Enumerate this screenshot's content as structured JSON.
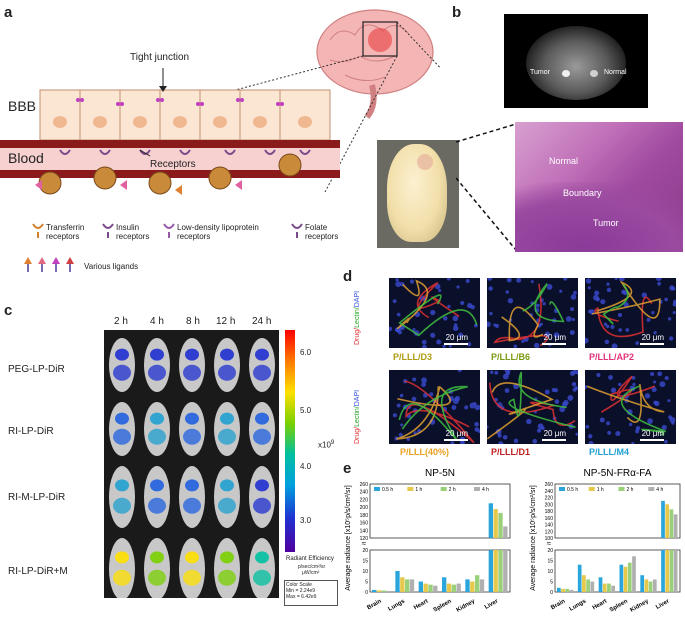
{
  "panel_a": {
    "letter": "a",
    "tight_junction": "Tight junction",
    "bbb": "BBB",
    "blood": "Blood",
    "receptors": "Receptors",
    "legend": [
      "Transferrin receptors",
      "Insulin receptors",
      "Low-density lipoprotein receptors",
      "Folate receptors"
    ],
    "ligands": "Various ligands"
  },
  "panel_b": {
    "letter": "b",
    "tumor": "Tumor",
    "normal": "Normal",
    "hist_normal": "Normal",
    "hist_boundary": "Boundary",
    "hist_tumor": "Tumor"
  },
  "panel_c": {
    "letter": "c",
    "times": [
      "2 h",
      "4 h",
      "8 h",
      "12 h",
      "24 h"
    ],
    "rows": [
      "PEG-LP-DiR",
      "RI-LP-DiR",
      "RI-M-LP-DiR",
      "RI-LP-DiR+M"
    ],
    "scale_ticks": [
      "6.0",
      "5.0",
      "4.0",
      "3.0"
    ],
    "scale_unit": "x10",
    "scale_exp": "9",
    "radiant": "Radiant Efficiency",
    "radiant_unit_top": "p/sec/cm²/sr",
    "radiant_unit_bot": "μW/cm²",
    "color_scale": "Color Scale",
    "min": "Min = 2.24e9",
    "max": "Max = 6.42e9"
  },
  "panel_d": {
    "letter": "d",
    "stain_side_drug": "Drug/",
    "stain_side_lectin": "Lectin/",
    "stain_side_dapi": "DAPI",
    "scale": "20 μm",
    "labels_top": [
      "P/LLL/D3",
      "P/LLL/B6",
      "P/LLL/AP2"
    ],
    "labels_bottom": [
      "P/LLL(40%)",
      "P/LLL/D1",
      "P/LLL/M4"
    ],
    "label_colors_top": [
      "#b09a10",
      "#7a9a10",
      "#e0307a"
    ],
    "label_colors_bottom": [
      "#e8a020",
      "#c02020",
      "#20a0d0"
    ]
  },
  "panel_e": {
    "letter": "e"
  },
  "chart_data": [
    {
      "type": "bar",
      "title": "NP-5N",
      "ylabel": "Average radiance [x10⁵p/s/cm²/sr]",
      "categories": [
        "Brain",
        "Lungs",
        "Heart",
        "Spleen",
        "Kidney",
        "Liver"
      ],
      "series": [
        {
          "name": "0.5 h",
          "color": "#2aa6dc",
          "values": [
            1.0,
            10,
            5,
            7,
            6,
            210
          ]
        },
        {
          "name": "1 h",
          "color": "#e6c84a",
          "values": [
            0.8,
            7,
            4,
            4,
            5,
            195
          ]
        },
        {
          "name": "2 h",
          "color": "#9ad07a",
          "values": [
            0.7,
            6,
            3.5,
            3.5,
            8,
            185
          ]
        },
        {
          "name": "4 h",
          "color": "#b0b0b0",
          "values": [
            0.5,
            6,
            3,
            4,
            6,
            150
          ]
        }
      ],
      "yticks_low": [
        "0",
        "5",
        "10",
        "15",
        "20"
      ],
      "yticks_high": [
        "120",
        "140",
        "160",
        "180",
        "200",
        "220",
        "240",
        "260"
      ]
    },
    {
      "type": "bar",
      "title": "NP-5N-FRα-FA",
      "ylabel": "Average radiance [x10⁵p/s/cm²/sr]",
      "categories": [
        "Brain",
        "Lungs",
        "Heart",
        "Spleen",
        "Kidney",
        "Liver"
      ],
      "series": [
        {
          "name": "0.5 h",
          "color": "#2aa6dc",
          "values": [
            2,
            13,
            7,
            13,
            8,
            210
          ]
        },
        {
          "name": "1 h",
          "color": "#e6c84a",
          "values": [
            1.5,
            8,
            4,
            12,
            6,
            200
          ]
        },
        {
          "name": "2 h",
          "color": "#9ad07a",
          "values": [
            1.5,
            6,
            4,
            14,
            5,
            185
          ]
        },
        {
          "name": "4 h",
          "color": "#b0b0b0",
          "values": [
            1,
            5,
            3,
            17,
            6,
            170
          ]
        }
      ],
      "yticks_low": [
        "0",
        "5",
        "10",
        "15",
        "20"
      ],
      "yticks_high": [
        "100",
        "120",
        "140",
        "160",
        "180",
        "200",
        "220",
        "240",
        "260"
      ]
    }
  ]
}
